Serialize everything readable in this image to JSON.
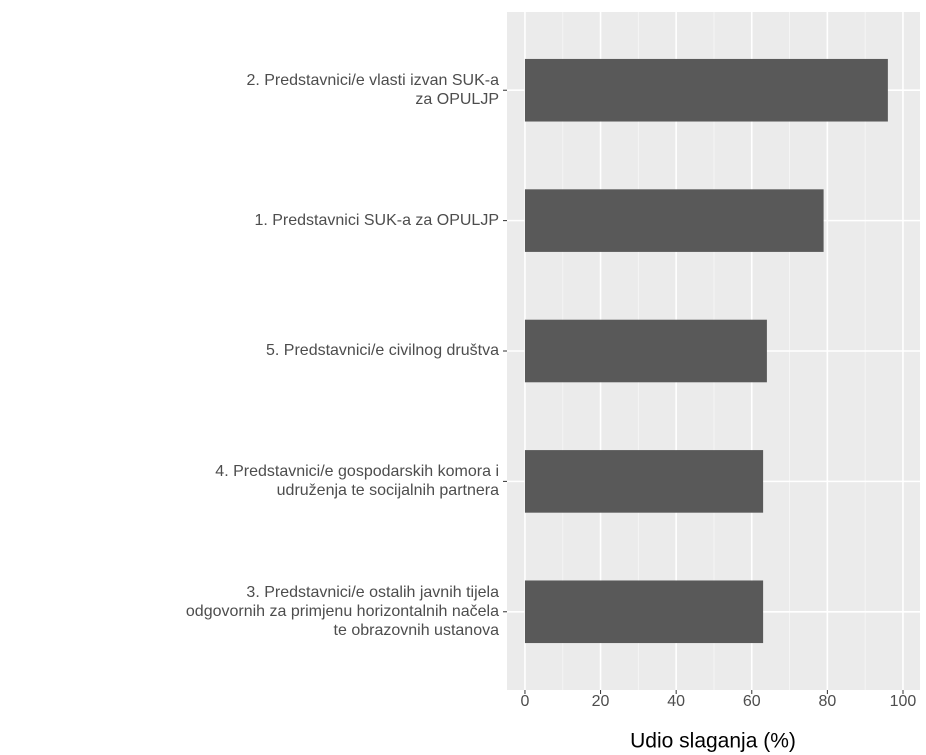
{
  "chart_data": {
    "type": "barh",
    "categories": [
      [
        "2. Predstavnici/e vlasti izvan SUK-a",
        "za OPULJP"
      ],
      [
        "1. Predstavnici SUK-a za OPULJP"
      ],
      [
        "5. Predstavnici/e civilnog društva"
      ],
      [
        "4. Predstavnici/e gospodarskih komora i",
        "udruženja te socijalnih partnera"
      ],
      [
        "3. Predstavnici/e ostalih javnih tijela",
        "odgovornih za primjenu horizontalnih načela",
        "te obrazovnih ustanova"
      ]
    ],
    "values": [
      96,
      79,
      64,
      63,
      63
    ],
    "color": "#595959",
    "xlabel": "Udio slaganja (%)",
    "xlim": [
      -4.75,
      104.5
    ],
    "xticks": [
      0,
      20,
      40,
      60,
      80,
      100
    ],
    "xticks_minor": [
      10,
      30,
      50,
      70,
      90
    ],
    "grid": true
  }
}
